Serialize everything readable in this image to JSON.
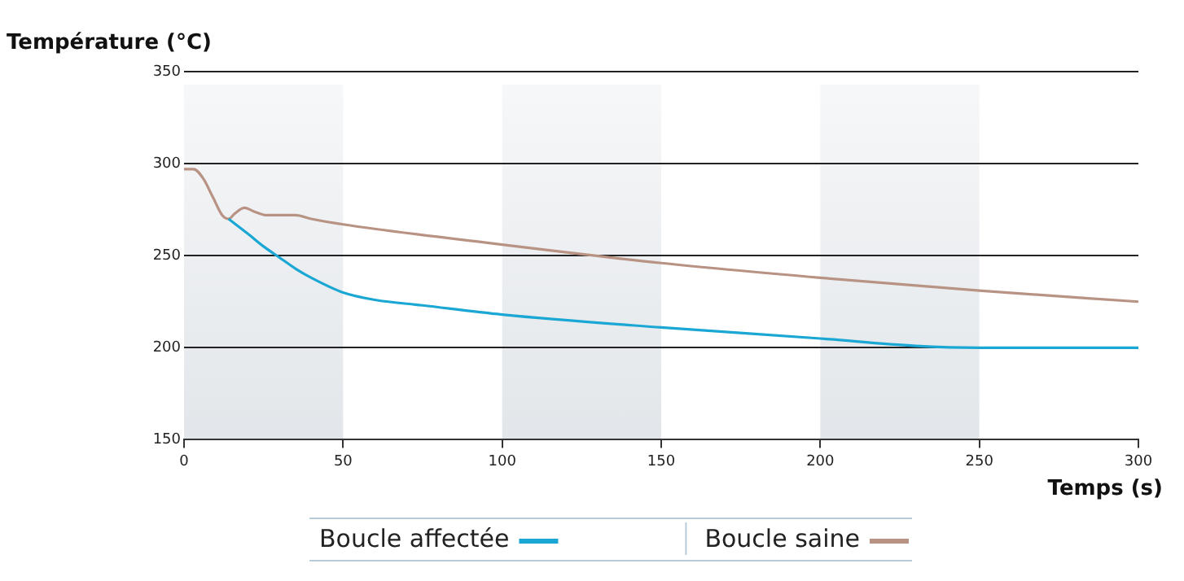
{
  "chart_data": {
    "type": "line",
    "xlabel": "Temps (s)",
    "ylabel": "Température (°C)",
    "xlim": [
      0,
      300
    ],
    "xticks": [
      0,
      50,
      100,
      150,
      200,
      250,
      300
    ],
    "ylim": [
      150,
      350
    ],
    "yticks": [
      150,
      200,
      250,
      300,
      350
    ],
    "grid": "y",
    "legend": "bottom",
    "marker": "none",
    "line_style": "solid",
    "bands": [
      {
        "axis": "x",
        "from": 0,
        "to": 50,
        "color": "#e2e6ea"
      },
      {
        "axis": "x",
        "from": 100,
        "to": 150,
        "color": "#e2e6ea"
      },
      {
        "axis": "x",
        "from": 200,
        "to": 250,
        "color": "#e2e6ea"
      }
    ],
    "series": [
      {
        "name": "Boucle affectée",
        "color": "#1aa7d4",
        "x": [
          14,
          20,
          25,
          30,
          35,
          40,
          50,
          60,
          75,
          100,
          150,
          200,
          230,
          250,
          300
        ],
        "values": [
          270,
          262,
          255,
          249,
          243,
          238,
          230,
          226,
          223,
          218,
          211,
          205,
          201,
          200,
          200
        ]
      },
      {
        "name": "Boucle saine",
        "color": "#b89384",
        "x": [
          0,
          3,
          6,
          9,
          12,
          14,
          16,
          19,
          22,
          26,
          35,
          40,
          50,
          100,
          150,
          200,
          250,
          300
        ],
        "values": [
          297,
          297,
          292,
          282,
          272,
          270,
          273,
          276,
          274,
          272,
          272,
          270,
          267,
          256,
          246,
          238,
          231,
          225
        ]
      }
    ]
  }
}
